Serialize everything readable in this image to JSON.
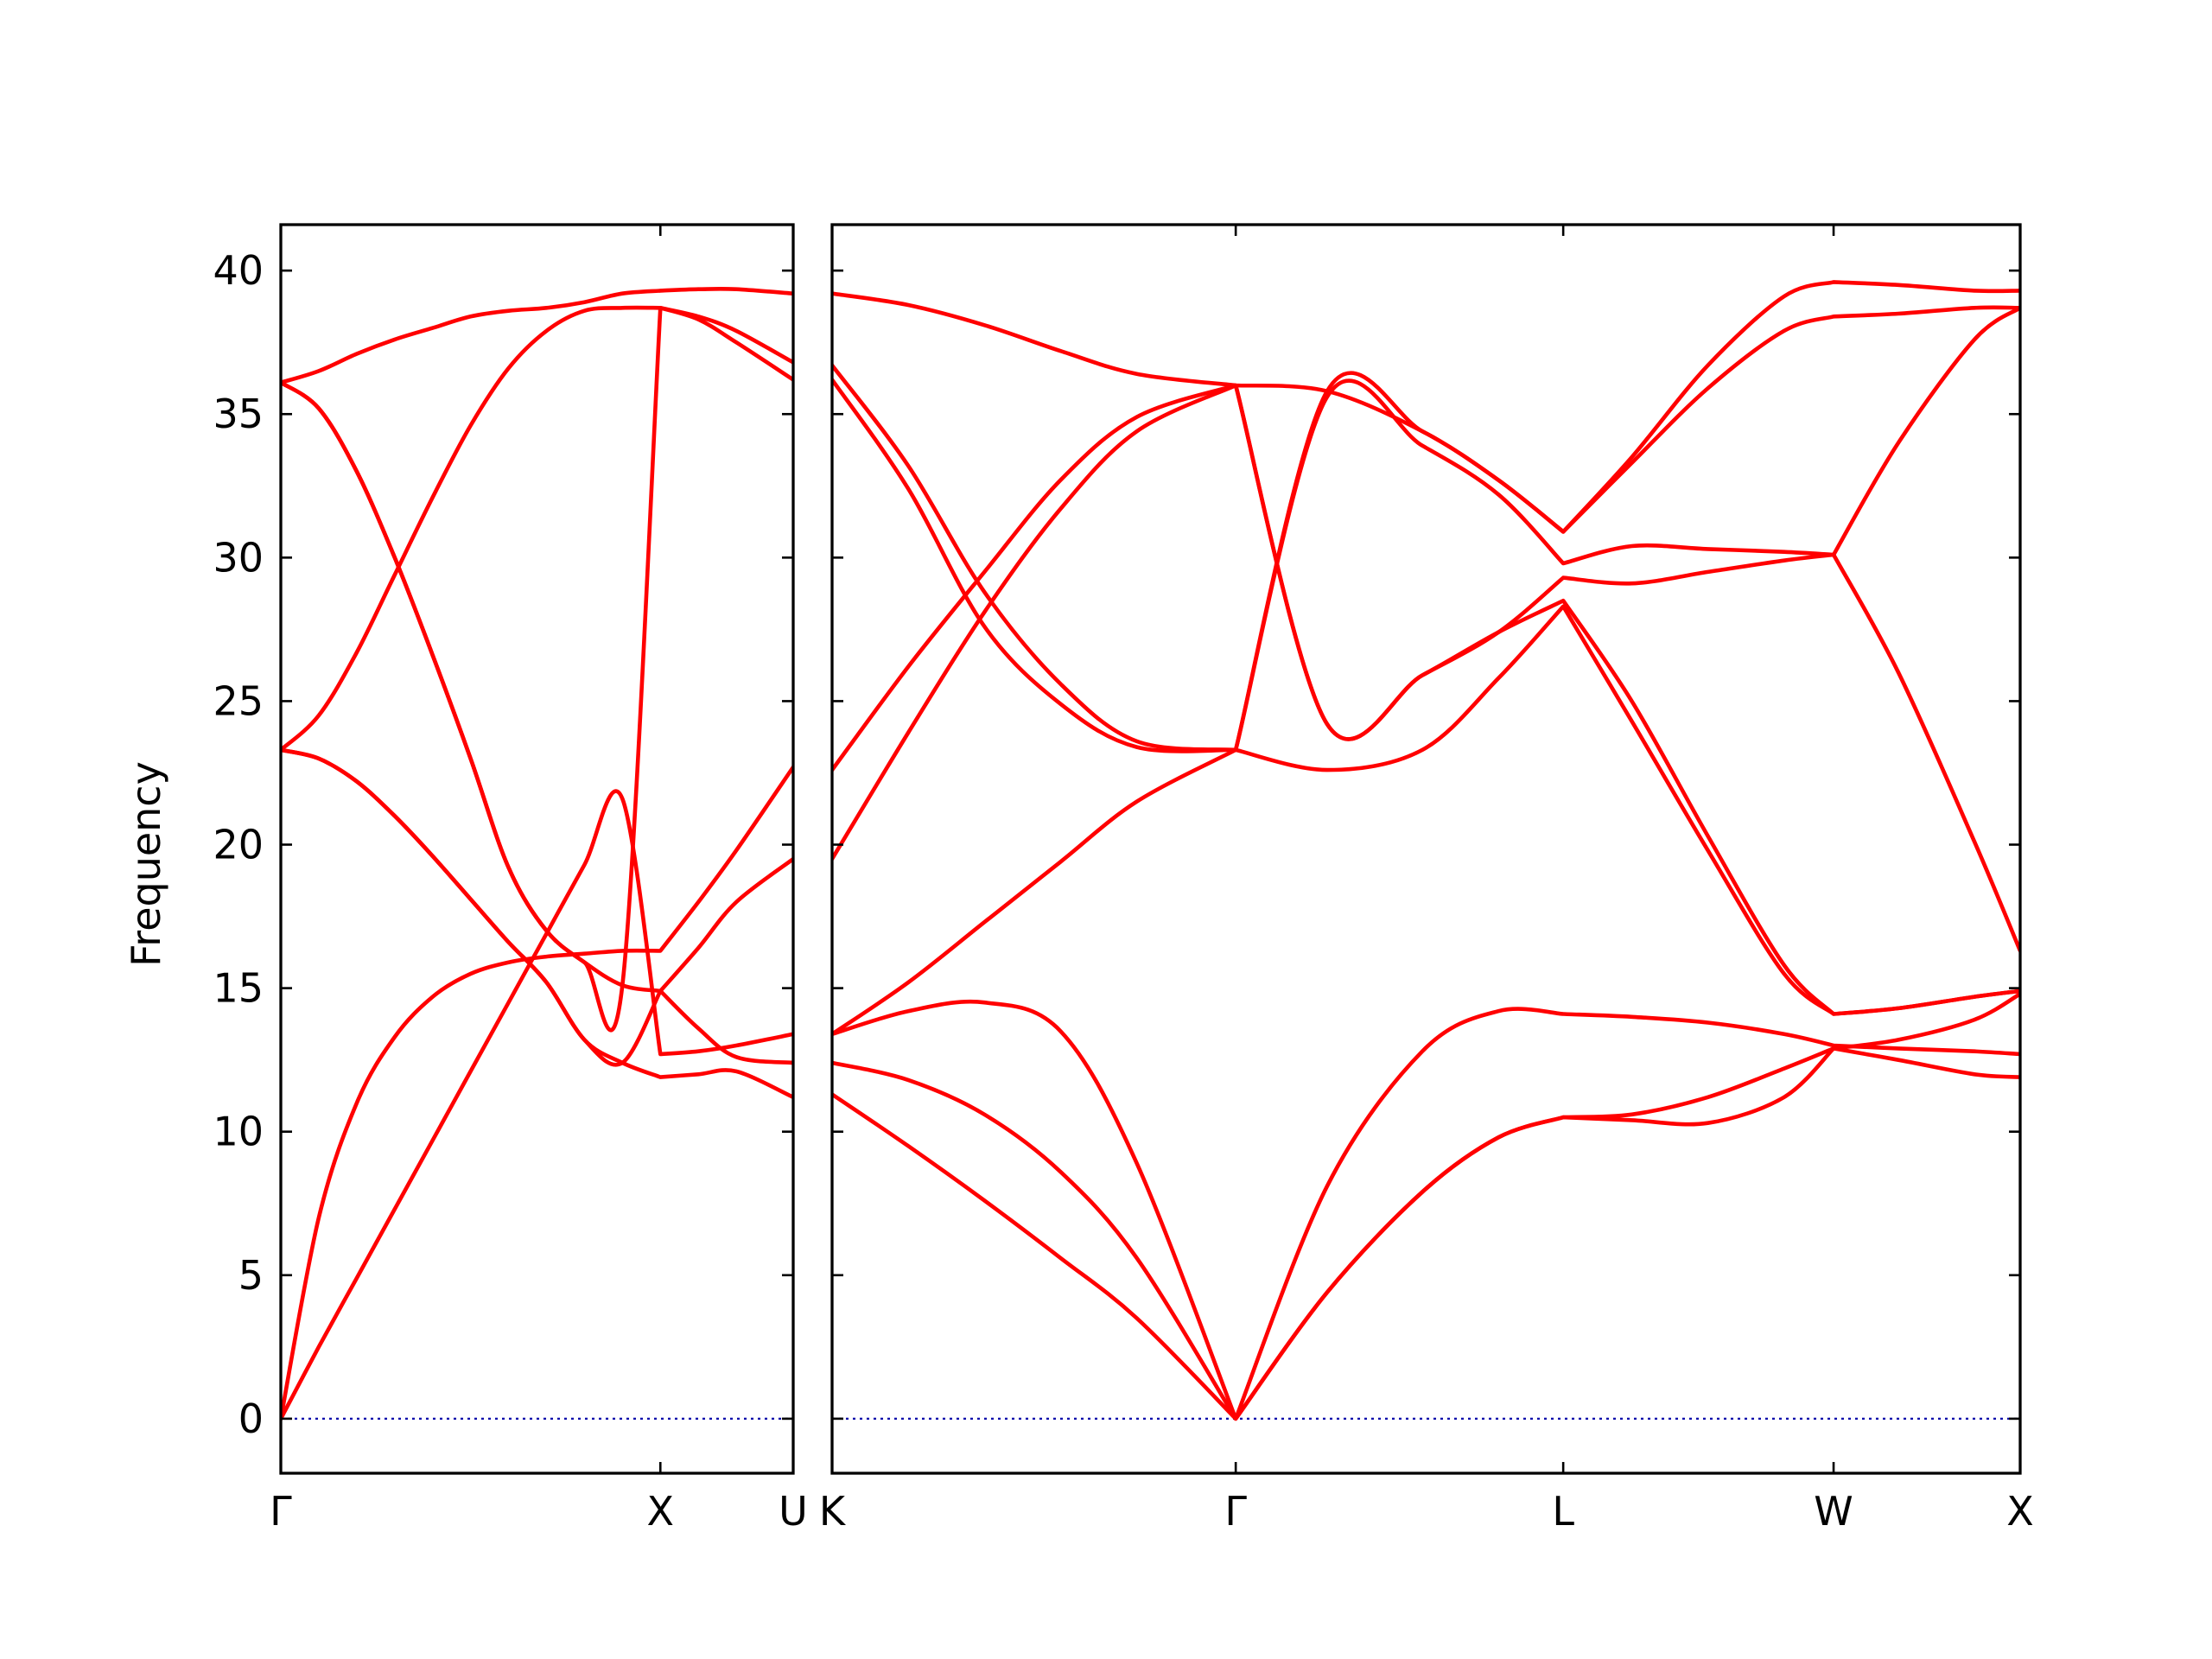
{
  "chart_data": {
    "type": "line",
    "title": "",
    "xlabel": "",
    "ylabel": "Frequency",
    "ylim": [
      -1.9,
      41.6
    ],
    "yticks": [
      0,
      5,
      10,
      15,
      20,
      25,
      30,
      35,
      40
    ],
    "grid": false,
    "legend": "none",
    "colors": {
      "bands": "#ff0000",
      "zero_line": "#0000aa",
      "axes": "#000000"
    },
    "panels": [
      {
        "name": "Γ-X-U",
        "xlim": [
          0,
          1.35
        ],
        "ticks": [
          {
            "x": 0,
            "label": "Γ"
          },
          {
            "x": 1.0,
            "label": "X"
          },
          {
            "x": 1.35,
            "label": "U"
          }
        ],
        "bands": [
          {
            "x": [
              0,
              0.1,
              0.2,
              0.3,
              0.4,
              0.5,
              0.6,
              0.7,
              0.8,
              0.9,
              1.0,
              1.1,
              1.2,
              1.35
            ],
            "y": [
              0,
              2.5,
              4.9,
              7.3,
              9.7,
              12.1,
              14.5,
              16.9,
              19.3,
              21.6,
              12.7,
              12.8,
              13.0,
              13.4
            ]
          },
          {
            "x": [
              0,
              0.1,
              0.2,
              0.3,
              0.4,
              0.5,
              0.6,
              0.7,
              0.8,
              0.9,
              1.0,
              1.1,
              1.2,
              1.35
            ],
            "y": [
              0,
              7.0,
              11.0,
              13.3,
              14.7,
              15.5,
              15.9,
              16.1,
              16.2,
              16.3,
              16.3,
              18.0,
              19.8,
              22.7
            ]
          },
          {
            "x": [
              0,
              0.1,
              0.2,
              0.3,
              0.4,
              0.5,
              0.6,
              0.7,
              0.8,
              0.9,
              1.0,
              1.1,
              1.2,
              1.35
            ],
            "y": [
              23.3,
              23.0,
              22.2,
              21.0,
              19.6,
              18.1,
              16.6,
              15.2,
              13.2,
              12.4,
              11.9,
              12.0,
              12.1,
              11.2
            ]
          },
          {
            "x": [
              0,
              0.1,
              0.2,
              0.3,
              0.4,
              0.5,
              0.6,
              0.7,
              0.8,
              0.9,
              1.0,
              1.1,
              1.2,
              1.35
            ],
            "y": [
              36.1,
              35.2,
              33.0,
              30.0,
              26.6,
              23.0,
              19.2,
              17.0,
              15.9,
              15.1,
              14.9,
              13.6,
              12.6,
              12.4
            ]
          },
          {
            "x": [
              0,
              0.1,
              0.2,
              0.3,
              0.4,
              0.5,
              0.6,
              0.7,
              0.8,
              0.9,
              1.0,
              1.1,
              1.2,
              1.35
            ],
            "y": [
              23.3,
              24.5,
              26.7,
              29.4,
              32.1,
              34.6,
              36.6,
              37.9,
              38.6,
              38.7,
              38.7,
              38.4,
              37.9,
              36.8
            ]
          },
          {
            "x": [
              0,
              0.1,
              0.2,
              0.3,
              0.4,
              0.5,
              0.6,
              0.7,
              0.8,
              0.9,
              1.0,
              1.1,
              1.2,
              1.35
            ],
            "y": [
              36.1,
              36.5,
              37.1,
              37.6,
              38.0,
              38.4,
              38.6,
              38.7,
              38.9,
              39.2,
              39.3,
              39.35,
              39.35,
              39.2
            ]
          },
          {
            "x": [
              0,
              0.1,
              0.2,
              0.3,
              0.4,
              0.5,
              0.6,
              0.7,
              0.8,
              0.9,
              1.0,
              1.1,
              1.2,
              1.35
            ],
            "y": [
              23.3,
              23.0,
              22.2,
              21.0,
              19.6,
              18.1,
              16.6,
              15.2,
              13.2,
              12.4,
              14.9,
              16.4,
              18.0,
              19.5
            ]
          },
          {
            "x": [
              0,
              0.1,
              0.2,
              0.3,
              0.4,
              0.5,
              0.6,
              0.7,
              0.8,
              0.9,
              1.0,
              1.1,
              1.2,
              1.35
            ],
            "y": [
              36.1,
              35.2,
              33.0,
              30.0,
              26.6,
              23.0,
              19.2,
              17.0,
              15.9,
              15.1,
              38.7,
              38.3,
              37.5,
              36.2
            ]
          }
        ]
      },
      {
        "name": "K-Γ-L-W-X",
        "xlim": [
          0,
          3.12
        ],
        "ticks": [
          {
            "x": 0,
            "label": "K"
          },
          {
            "x": 1.06,
            "label": "Γ"
          },
          {
            "x": 1.92,
            "label": "L"
          },
          {
            "x": 2.63,
            "label": "W"
          },
          {
            "x": 3.12,
            "label": "X"
          }
        ],
        "bands": [
          {
            "x": [
              0,
              0.2,
              0.4,
              0.6,
              0.8,
              1.06,
              1.3,
              1.55,
              1.75,
              1.92,
              2.1,
              2.3,
              2.5,
              2.63,
              2.8,
              3.0,
              3.12
            ],
            "y": [
              11.3,
              9.5,
              7.6,
              5.6,
              3.5,
              0,
              4.4,
              7.9,
              9.8,
              10.5,
              10.6,
              11.2,
              12.2,
              12.9,
              13.2,
              13.9,
              14.8
            ]
          },
          {
            "x": [
              0,
              0.2,
              0.4,
              0.6,
              0.8,
              1.06,
              1.3,
              1.55,
              1.75,
              1.92,
              2.1,
              2.3,
              2.5,
              2.63,
              2.8,
              3.0,
              3.12
            ],
            "y": [
              12.4,
              11.8,
              10.6,
              8.6,
              5.6,
              0,
              8.1,
              12.8,
              14.2,
              14.1,
              14.0,
              13.8,
              13.4,
              13.0,
              12.9,
              12.8,
              12.7
            ]
          },
          {
            "x": [
              0,
              0.2,
              0.4,
              0.6,
              0.8,
              1.06,
              1.3,
              1.55,
              1.75,
              1.92,
              2.1,
              2.3,
              2.5,
              2.63,
              2.8,
              3.0,
              3.12
            ],
            "y": [
              13.4,
              14.2,
              14.5,
              13.5,
              8.9,
              0,
              4.4,
              7.9,
              9.8,
              10.5,
              10.4,
              10.3,
              11.2,
              12.9,
              12.5,
              12.0,
              11.9
            ]
          },
          {
            "x": [
              0,
              0.2,
              0.4,
              0.6,
              0.8,
              1.06,
              1.3,
              1.55,
              1.75,
              1.92,
              2.1,
              2.3,
              2.5,
              2.63,
              2.8,
              3.0,
              3.12
            ],
            "y": [
              13.4,
              15.2,
              17.3,
              19.4,
              21.5,
              23.3,
              22.6,
              23.3,
              25.8,
              28.3,
              24.3,
              19.8,
              15.5,
              14.1,
              14.3,
              14.7,
              14.9
            ]
          },
          {
            "x": [
              0,
              0.2,
              0.4,
              0.6,
              0.8,
              1.06,
              1.3,
              1.55,
              1.75,
              1.92,
              2.1,
              2.3,
              2.5,
              2.63,
              2.8,
              3.0,
              3.12
            ],
            "y": [
              19.5,
              23.9,
              28.1,
              31.7,
              34.4,
              36.0,
              24.2,
              25.9,
              27.4,
              28.5,
              25.0,
              20.3,
              15.8,
              14.1,
              14.3,
              14.7,
              14.9
            ]
          },
          {
            "x": [
              0,
              0.2,
              0.4,
              0.6,
              0.8,
              1.06,
              1.3,
              1.55,
              1.75,
              1.92,
              2.1,
              2.3,
              2.5,
              2.63,
              2.8,
              3.0,
              3.12
            ],
            "y": [
              22.6,
              26.2,
              29.5,
              32.7,
              34.9,
              36.0,
              24.2,
              25.9,
              27.4,
              29.3,
              29.1,
              29.5,
              29.9,
              30.1,
              26.0,
              20.1,
              16.3
            ]
          },
          {
            "x": [
              0,
              0.2,
              0.4,
              0.6,
              0.8,
              1.06,
              1.3,
              1.55,
              1.75,
              1.92,
              2.1,
              2.3,
              2.5,
              2.63,
              2.8,
              3.0,
              3.12
            ],
            "y": [
              36.2,
              32.4,
              27.6,
              24.9,
              23.4,
              23.3,
              35.6,
              33.9,
              32.2,
              29.8,
              30.4,
              30.3,
              30.2,
              30.1,
              34.0,
              37.6,
              38.7
            ]
          },
          {
            "x": [
              0,
              0.2,
              0.4,
              0.6,
              0.8,
              1.06,
              1.3,
              1.55,
              1.75,
              1.92,
              2.1,
              2.3,
              2.5,
              2.63,
              2.8,
              3.0,
              3.12
            ],
            "y": [
              36.7,
              33.2,
              28.8,
              25.6,
              23.6,
              23.3,
              35.8,
              34.4,
              32.7,
              30.9,
              33.3,
              35.9,
              37.9,
              38.4,
              38.5,
              38.7,
              38.7
            ]
          },
          {
            "x": [
              0,
              0.2,
              0.4,
              0.6,
              0.8,
              1.06,
              1.3,
              1.55,
              1.75,
              1.92,
              2.1,
              2.3,
              2.5,
              2.63,
              2.8,
              3.0,
              3.12
            ],
            "y": [
              39.2,
              38.8,
              38.1,
              37.2,
              36.4,
              36.0,
              35.8,
              34.4,
              32.7,
              30.9,
              33.5,
              36.7,
              39.1,
              39.6,
              39.5,
              39.3,
              39.3
            ]
          }
        ]
      }
    ]
  }
}
